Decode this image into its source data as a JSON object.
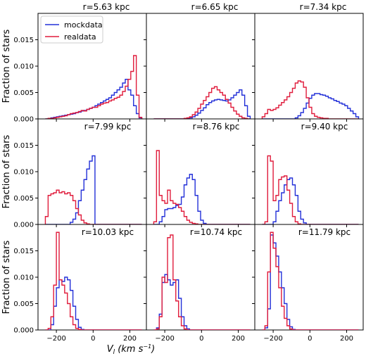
{
  "chart_data": {
    "type": "histogram-grid",
    "grid": "off",
    "ylabel": "Fraction of stars",
    "xlabel_main": "V",
    "xlabel_sub": "l",
    "xlabel_units": "(km s",
    "xlabel_exp": "−1",
    "xlabel_close": ")",
    "xlim": [
      -300,
      290
    ],
    "ylim": [
      0,
      0.02
    ],
    "x_ticks": [
      -200,
      0,
      200
    ],
    "x_tick_labels": [
      "−200",
      "0",
      "200"
    ],
    "y_ticks": [
      0,
      0.005,
      0.01,
      0.015
    ],
    "y_tick_labels": [
      "0.000",
      "0.005",
      "0.010",
      "0.015"
    ],
    "bin_edges": [
      -260,
      -245,
      -230,
      -215,
      -200,
      -185,
      -170,
      -155,
      -140,
      -125,
      -110,
      -95,
      -80,
      -65,
      -50,
      -35,
      -20,
      -5,
      10,
      25,
      40,
      55,
      70,
      85,
      100,
      115,
      130,
      145,
      160,
      175,
      190,
      205,
      220,
      235,
      250,
      265
    ],
    "legend": {
      "position": "upper-left (first panel)",
      "entries": [
        {
          "label": "mockdata",
          "color": "#2330d8"
        },
        {
          "label": "realdata",
          "color": "#e01c3c"
        }
      ]
    },
    "panels": [
      {
        "title": "r=5.63 kpc",
        "series": [
          {
            "name": "mockdata",
            "values": [
              0,
              0.0001,
              0.0002,
              0.0003,
              0.0004,
              0.0005,
              0.0006,
              0.0007,
              0.0008,
              0.0009,
              0.001,
              0.0012,
              0.0013,
              0.0015,
              0.0016,
              0.0018,
              0.002,
              0.0022,
              0.0025,
              0.0028,
              0.0031,
              0.0034,
              0.0037,
              0.004,
              0.0045,
              0.005,
              0.0055,
              0.006,
              0.0068,
              0.0075,
              0.0055,
              0.0045,
              0.0025,
              0.001,
              0.0002
            ]
          },
          {
            "name": "realdata",
            "values": [
              0,
              0.0001,
              0.0001,
              0.0002,
              0.0003,
              0.0004,
              0.0005,
              0.0006,
              0.0008,
              0.001,
              0.0011,
              0.0012,
              0.0014,
              0.0016,
              0.0015,
              0.0018,
              0.002,
              0.0022,
              0.0022,
              0.0025,
              0.0028,
              0.003,
              0.0031,
              0.0034,
              0.0036,
              0.0039,
              0.0041,
              0.0045,
              0.0052,
              0.0062,
              0.0075,
              0.009,
              0.012,
              0.0045,
              0.0003
            ]
          }
        ]
      },
      {
        "title": "r=6.65 kpc",
        "series": [
          {
            "name": "mockdata",
            "values": [
              0,
              0,
              0,
              0,
              0,
              0,
              0,
              0,
              0,
              0,
              0,
              0,
              0.0001,
              0.0002,
              0.0004,
              0.0007,
              0.0011,
              0.0016,
              0.0021,
              0.0027,
              0.0031,
              0.0034,
              0.0036,
              0.0037,
              0.0036,
              0.0035,
              0.0034,
              0.0036,
              0.004,
              0.0045,
              0.005,
              0.0055,
              0.0045,
              0.0025,
              0.0005
            ]
          },
          {
            "name": "realdata",
            "values": [
              0,
              0,
              0,
              0,
              0,
              0,
              0,
              0,
              0,
              0,
              0,
              0.0001,
              0.0002,
              0.0004,
              0.0008,
              0.0013,
              0.002,
              0.0028,
              0.0035,
              0.0042,
              0.005,
              0.0058,
              0.0061,
              0.0055,
              0.005,
              0.0045,
              0.0037,
              0.003,
              0.0022,
              0.0015,
              0.0009,
              0.0005,
              0.0002,
              0.0001,
              0
            ]
          }
        ]
      },
      {
        "title": "r=7.34 kpc",
        "series": [
          {
            "name": "mockdata",
            "values": [
              0,
              0,
              0,
              0,
              0,
              0,
              0,
              0,
              0,
              0,
              0,
              0,
              0.0002,
              0.0006,
              0.0012,
              0.002,
              0.003,
              0.0039,
              0.0045,
              0.0048,
              0.0048,
              0.0046,
              0.0045,
              0.0043,
              0.004,
              0.0038,
              0.0035,
              0.0033,
              0.003,
              0.0028,
              0.0025,
              0.002,
              0.0015,
              0.001,
              0.0004
            ]
          },
          {
            "name": "realdata",
            "values": [
              0.0004,
              0.001,
              0.0018,
              0.0016,
              0.0018,
              0.0021,
              0.0026,
              0.0031,
              0.0036,
              0.0042,
              0.005,
              0.0058,
              0.0068,
              0.0072,
              0.007,
              0.006,
              0.004,
              0.0022,
              0.001,
              0.0005,
              0.0003,
              0.0002,
              0.0001,
              0.0001,
              0,
              0,
              0,
              0,
              0,
              0,
              0,
              0,
              0,
              0,
              0
            ]
          }
        ]
      },
      {
        "title": "r=7.99 kpc",
        "series": [
          {
            "name": "mockdata",
            "values": [
              0,
              0,
              0,
              0,
              0,
              0,
              0,
              0,
              0,
              0.0004,
              0.001,
              0.0022,
              0.0045,
              0.0065,
              0.0085,
              0.0105,
              0.012,
              0.013,
              0,
              0,
              0,
              0,
              0,
              0,
              0,
              0,
              0,
              0,
              0,
              0,
              0,
              0,
              0,
              0,
              0
            ]
          },
          {
            "name": "realdata",
            "values": [
              0.0015,
              0.0055,
              0.0058,
              0.006,
              0.0065,
              0.006,
              0.0062,
              0.0058,
              0.006,
              0.0055,
              0.0045,
              0.003,
              0.0018,
              0.0008,
              0.0003,
              0.0001,
              0,
              0,
              0,
              0,
              0,
              0,
              0,
              0,
              0,
              0,
              0,
              0,
              0,
              0,
              0,
              0,
              0,
              0,
              0
            ]
          }
        ]
      },
      {
        "title": "r=8.76 kpc",
        "series": [
          {
            "name": "mockdata",
            "values": [
              0,
              0,
              0.0005,
              0.0015,
              0.0028,
              0.003,
              0.003,
              0.0032,
              0.0036,
              0.0038,
              0.0052,
              0.0075,
              0.0088,
              0.0095,
              0.0085,
              0.0055,
              0.0025,
              0.0008,
              0.0002,
              0,
              0,
              0,
              0,
              0,
              0,
              0,
              0,
              0,
              0,
              0,
              0,
              0,
              0,
              0,
              0
            ]
          },
          {
            "name": "realdata",
            "values": [
              0.0005,
              0.014,
              0.0055,
              0.0045,
              0.004,
              0.0065,
              0.0045,
              0.004,
              0.0038,
              0.0032,
              0.0025,
              0.0015,
              0.0008,
              0.0004,
              0.0002,
              0.0001,
              0,
              0,
              0,
              0,
              0,
              0,
              0,
              0,
              0,
              0,
              0,
              0,
              0,
              0,
              0,
              0,
              0,
              0,
              0
            ]
          }
        ]
      },
      {
        "title": "r=9.40 kpc",
        "series": [
          {
            "name": "mockdata",
            "values": [
              0,
              0,
              0,
              0,
              0.0005,
              0.0025,
              0.0045,
              0.006,
              0.0075,
              0.0085,
              0.0088,
              0.0075,
              0.0055,
              0.0025,
              0.001,
              0.0003,
              0,
              0,
              0,
              0,
              0,
              0,
              0,
              0,
              0,
              0,
              0,
              0,
              0,
              0,
              0,
              0,
              0,
              0,
              0
            ]
          },
          {
            "name": "realdata",
            "values": [
              0,
              0.0005,
              0.013,
              0.012,
              0.0045,
              0.0055,
              0.0085,
              0.009,
              0.0092,
              0.0065,
              0.004,
              0.0015,
              0.0005,
              0.0001,
              0,
              0,
              0,
              0,
              0,
              0,
              0,
              0,
              0,
              0,
              0,
              0,
              0,
              0,
              0,
              0,
              0,
              0,
              0,
              0,
              0
            ]
          }
        ]
      },
      {
        "title": "r=10.03 kpc",
        "series": [
          {
            "name": "mockdata",
            "values": [
              0,
              0,
              0.001,
              0.0045,
              0.008,
              0.0095,
              0.0092,
              0.01,
              0.0095,
              0.0075,
              0.0045,
              0.002,
              0.0005,
              0.0001,
              0,
              0,
              0,
              0,
              0,
              0,
              0,
              0,
              0,
              0,
              0,
              0,
              0,
              0,
              0,
              0,
              0,
              0,
              0,
              0,
              0
            ]
          },
          {
            "name": "realdata",
            "values": [
              0,
              0.0003,
              0.0025,
              0.0085,
              0.0185,
              0.0095,
              0.0085,
              0.007,
              0.005,
              0.0025,
              0.001,
              0.0003,
              0.0001,
              0,
              0,
              0,
              0,
              0,
              0,
              0,
              0,
              0,
              0,
              0,
              0,
              0,
              0,
              0,
              0,
              0,
              0,
              0,
              0,
              0,
              0
            ]
          }
        ]
      },
      {
        "title": "r=10.74 kpc",
        "series": [
          {
            "name": "mockdata",
            "values": [
              0,
              0.0004,
              0.003,
              0.009,
              0.0105,
              0.0095,
              0.0085,
              0.009,
              0.0095,
              0.006,
              0.0025,
              0.0008,
              0.0002,
              0,
              0,
              0,
              0,
              0,
              0,
              0,
              0,
              0,
              0,
              0,
              0,
              0,
              0,
              0,
              0,
              0,
              0,
              0,
              0,
              0,
              0
            ]
          },
          {
            "name": "realdata",
            "values": [
              0,
              0.0002,
              0.0025,
              0.01,
              0.009,
              0.0175,
              0.018,
              0.0095,
              0.0055,
              0.0025,
              0.0008,
              0.0002,
              0,
              0,
              0,
              0,
              0,
              0,
              0,
              0,
              0,
              0,
              0,
              0,
              0,
              0,
              0,
              0,
              0,
              0,
              0,
              0,
              0,
              0,
              0
            ]
          }
        ]
      },
      {
        "title": "r=11.79 kpc",
        "series": [
          {
            "name": "mockdata",
            "values": [
              0,
              0.0004,
              0.004,
              0.018,
              0.0165,
              0.014,
              0.011,
              0.008,
              0.005,
              0.002,
              0.0006,
              0.0001,
              0,
              0,
              0,
              0,
              0,
              0,
              0,
              0,
              0,
              0,
              0,
              0,
              0,
              0,
              0,
              0,
              0,
              0,
              0,
              0,
              0,
              0,
              0
            ]
          },
          {
            "name": "realdata",
            "values": [
              0,
              0.0008,
              0.011,
              0.0185,
              0.0155,
              0.012,
              0.008,
              0.0045,
              0.0022,
              0.0008,
              0.0002,
              0,
              0,
              0,
              0,
              0,
              0,
              0,
              0,
              0,
              0,
              0,
              0,
              0,
              0,
              0,
              0,
              0,
              0,
              0,
              0,
              0,
              0,
              0,
              0
            ]
          }
        ]
      }
    ]
  }
}
